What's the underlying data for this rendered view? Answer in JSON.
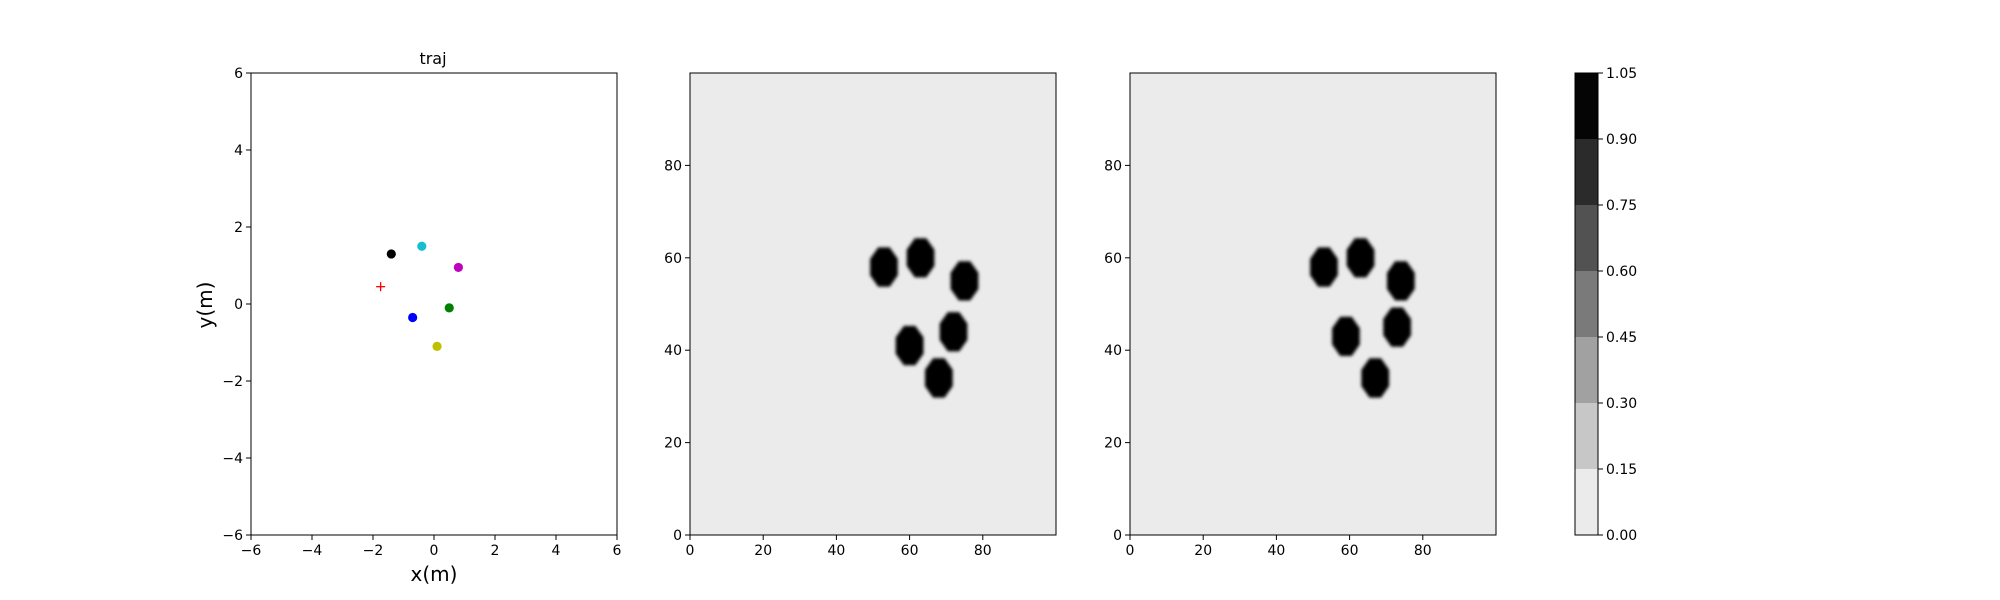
{
  "chart_data": [
    {
      "type": "scatter",
      "title": "traj",
      "xlabel": "x(m)",
      "ylabel": "y(m)",
      "xlim": [
        -6,
        6
      ],
      "ylim": [
        -6,
        6
      ],
      "xticks": [
        "−6",
        "−4",
        "−2",
        "0",
        "2",
        "4",
        "6"
      ],
      "yticks": [
        "−6",
        "−4",
        "−2",
        "0",
        "2",
        "4",
        "6"
      ],
      "grid": false,
      "points": [
        {
          "x": -1.4,
          "y": 1.3,
          "color": "#000000",
          "marker": "circle"
        },
        {
          "x": -0.4,
          "y": 1.5,
          "color": "#17becf",
          "marker": "circle"
        },
        {
          "x": 0.8,
          "y": 0.95,
          "color": "#bf00bf",
          "marker": "circle"
        },
        {
          "x": 0.5,
          "y": -0.1,
          "color": "#008000",
          "marker": "circle"
        },
        {
          "x": -0.7,
          "y": -0.35,
          "color": "#0000ff",
          "marker": "circle"
        },
        {
          "x": 0.1,
          "y": -1.1,
          "color": "#bfbf00",
          "marker": "circle"
        },
        {
          "x": -1.75,
          "y": 0.45,
          "color": "#ff0000",
          "marker": "plus"
        }
      ]
    },
    {
      "type": "heatmap",
      "title": "",
      "xlim": [
        0,
        100
      ],
      "ylim": [
        0,
        100
      ],
      "xticks": [
        0,
        20,
        40,
        60,
        80
      ],
      "yticks": [
        0,
        20,
        40,
        60,
        80
      ],
      "background_value": 0.0,
      "blobs": [
        {
          "x": 53,
          "y": 58,
          "value": 1.0
        },
        {
          "x": 63,
          "y": 60,
          "value": 1.0
        },
        {
          "x": 75,
          "y": 55,
          "value": 1.0
        },
        {
          "x": 60,
          "y": 41,
          "value": 1.0
        },
        {
          "x": 72,
          "y": 44,
          "value": 1.0
        },
        {
          "x": 68,
          "y": 34,
          "value": 1.0
        }
      ]
    },
    {
      "type": "heatmap",
      "title": "",
      "xlim": [
        0,
        100
      ],
      "ylim": [
        0,
        100
      ],
      "xticks": [
        0,
        20,
        40,
        60,
        80
      ],
      "yticks": [
        0,
        20,
        40,
        60,
        80
      ],
      "background_value": 0.0,
      "blobs": [
        {
          "x": 53,
          "y": 58,
          "value": 1.0
        },
        {
          "x": 63,
          "y": 60,
          "value": 1.0
        },
        {
          "x": 74,
          "y": 55,
          "value": 1.0
        },
        {
          "x": 59,
          "y": 43,
          "value": 1.0
        },
        {
          "x": 73,
          "y": 45,
          "value": 1.0
        },
        {
          "x": 67,
          "y": 34,
          "value": 1.0
        }
      ]
    }
  ],
  "colorbar": {
    "range": [
      0.0,
      1.05
    ],
    "levels": [
      0.0,
      0.15,
      0.3,
      0.45,
      0.6,
      0.75,
      0.9,
      1.05
    ],
    "tick_labels": [
      "0.00",
      "0.15",
      "0.30",
      "0.45",
      "0.60",
      "0.75",
      "0.90",
      "1.05"
    ],
    "colors": [
      "#ebebeb",
      "#c7c7c7",
      "#a1a1a1",
      "#7a7a7a",
      "#525252",
      "#2b2b2b",
      "#050505"
    ]
  }
}
